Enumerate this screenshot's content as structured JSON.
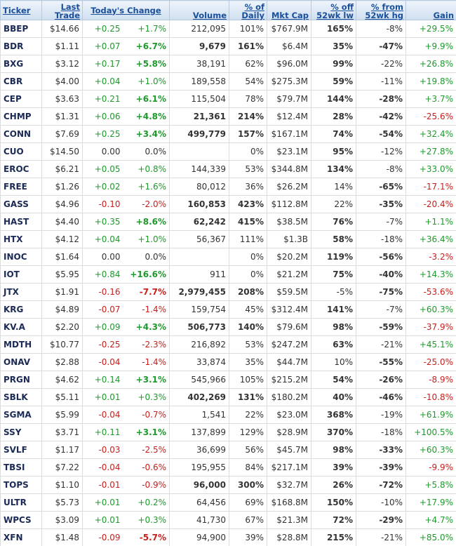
{
  "table": {
    "header": [
      "Ticker",
      "Last\nTrade",
      "Today's Change",
      "Volume",
      "% of\nDaily",
      "Mkt Cap",
      "% off\n52wk lw",
      "% from\n52wk hg",
      "Gain"
    ],
    "rows": [
      {
        "cells": [
          "BBEP",
          "$14.66",
          "+0.25",
          "+1.7%",
          "212,095",
          "101%",
          "$767.9M",
          "165%",
          "-8%",
          "+29.5%"
        ],
        "bold": [
          0,
          7
        ]
      },
      {
        "cells": [
          "BDR",
          "$1.11",
          "+0.07",
          "+6.7%",
          "9,679",
          "161%",
          "$6.4M",
          "35%",
          "-47%",
          "+9.9%"
        ],
        "bold": [
          0,
          3,
          4,
          5,
          7,
          8
        ]
      },
      {
        "cells": [
          "BXG",
          "$3.12",
          "+0.17",
          "+5.8%",
          "38,191",
          "62%",
          "$96.0M",
          "99%",
          "-22%",
          "+26.8%"
        ],
        "bold": [
          0,
          3,
          7
        ]
      },
      {
        "cells": [
          "CBR",
          "$4.00",
          "+0.04",
          "+1.0%",
          "189,558",
          "54%",
          "$275.3M",
          "59%",
          "-11%",
          "+19.8%"
        ],
        "bold": [
          0,
          7
        ]
      },
      {
        "cells": [
          "CEP",
          "$3.63",
          "+0.21",
          "+6.1%",
          "115,504",
          "78%",
          "$79.7M",
          "144%",
          "-28%",
          "+3.7%"
        ],
        "bold": [
          0,
          3,
          7,
          8
        ]
      },
      {
        "cells": [
          "CHMP",
          "$1.31",
          "+0.06",
          "+4.8%",
          "21,361",
          "214%",
          "$12.4M",
          "28%",
          "-42%",
          "-25.6%"
        ],
        "bold": [
          0,
          3,
          4,
          5,
          7,
          8
        ]
      },
      {
        "cells": [
          "CONN",
          "$7.69",
          "+0.25",
          "+3.4%",
          "499,779",
          "157%",
          "$167.1M",
          "74%",
          "-54%",
          "+32.4%"
        ],
        "bold": [
          0,
          3,
          4,
          5,
          7,
          8
        ]
      },
      {
        "cells": [
          "CUO",
          "$14.50",
          "0.00",
          "0.0%",
          null,
          "0%",
          "$23.1M",
          "95%",
          "-12%",
          "+27.8%"
        ],
        "bold": [
          0,
          7
        ]
      },
      {
        "cells": [
          "EROC",
          "$6.21",
          "+0.05",
          "+0.8%",
          "144,339",
          "53%",
          "$344.8M",
          "134%",
          "-8%",
          "+33.0%"
        ],
        "bold": [
          0,
          7
        ]
      },
      {
        "cells": [
          "FREE",
          "$1.26",
          "+0.02",
          "+1.6%",
          "80,012",
          "36%",
          "$26.2M",
          "14%",
          "-65%",
          "-17.1%"
        ],
        "bold": [
          0,
          8
        ]
      },
      {
        "cells": [
          "GASS",
          "$4.96",
          "-0.10",
          "-2.0%",
          "160,853",
          "423%",
          "$112.8M",
          "22%",
          "-35%",
          "-20.4%"
        ],
        "bold": [
          0,
          4,
          5,
          8
        ]
      },
      {
        "cells": [
          "HAST",
          "$4.40",
          "+0.35",
          "+8.6%",
          "62,242",
          "415%",
          "$38.5M",
          "76%",
          "-7%",
          "+1.1%"
        ],
        "bold": [
          0,
          3,
          4,
          5,
          7
        ]
      },
      {
        "cells": [
          "HTX",
          "$4.12",
          "+0.04",
          "+1.0%",
          "56,367",
          "111%",
          "$1.3B",
          "58%",
          "-18%",
          "+36.4%"
        ],
        "bold": [
          0,
          7
        ]
      },
      {
        "cells": [
          "INOC",
          "$1.64",
          "0.00",
          "0.0%",
          null,
          "0%",
          "$20.2M",
          "119%",
          "-56%",
          "-3.2%"
        ],
        "bold": [
          0,
          7,
          8
        ]
      },
      {
        "cells": [
          "IOT",
          "$5.95",
          "+0.84",
          "+16.6%",
          "911",
          "0%",
          "$21.2M",
          "75%",
          "-40%",
          "+14.3%"
        ],
        "bold": [
          0,
          3,
          7,
          8
        ]
      },
      {
        "cells": [
          "JTX",
          "$1.91",
          "-0.16",
          "-7.7%",
          "2,979,455",
          "208%",
          "$59.5M",
          "-5%",
          "-75%",
          "-53.6%"
        ],
        "bold": [
          0,
          3,
          4,
          5,
          8
        ]
      },
      {
        "cells": [
          "KRG",
          "$4.89",
          "-0.07",
          "-1.4%",
          "159,754",
          "45%",
          "$312.4M",
          "141%",
          "-7%",
          "+60.3%"
        ],
        "bold": [
          0,
          7
        ]
      },
      {
        "cells": [
          "KV.A",
          "$2.20",
          "+0.09",
          "+4.3%",
          "506,773",
          "140%",
          "$79.6M",
          "98%",
          "-59%",
          "-37.9%"
        ],
        "bold": [
          0,
          3,
          4,
          5,
          7,
          8
        ]
      },
      {
        "cells": [
          "MDTH",
          "$10.77",
          "-0.25",
          "-2.3%",
          "216,892",
          "53%",
          "$247.2M",
          "63%",
          "-21%",
          "+45.1%"
        ],
        "bold": [
          0,
          7
        ]
      },
      {
        "cells": [
          "ONAV",
          "$2.88",
          "-0.04",
          "-1.4%",
          "33,874",
          "35%",
          "$44.7M",
          "10%",
          "-55%",
          "-25.0%"
        ],
        "bold": [
          0,
          8
        ]
      },
      {
        "cells": [
          "PRGN",
          "$4.62",
          "+0.14",
          "+3.1%",
          "545,966",
          "105%",
          "$215.2M",
          "54%",
          "-26%",
          "-8.9%"
        ],
        "bold": [
          0,
          3,
          7,
          8
        ]
      },
      {
        "cells": [
          "SBLK",
          "$5.11",
          "+0.01",
          "+0.3%",
          "402,269",
          "131%",
          "$180.2M",
          "40%",
          "-46%",
          "-10.8%"
        ],
        "bold": [
          0,
          4,
          5,
          7,
          8
        ]
      },
      {
        "cells": [
          "SGMA",
          "$5.99",
          "-0.04",
          "-0.7%",
          "1,541",
          "22%",
          "$23.0M",
          "368%",
          "-19%",
          "+61.9%"
        ],
        "bold": [
          0,
          7
        ]
      },
      {
        "cells": [
          "SSY",
          "$3.71",
          "+0.11",
          "+3.1%",
          "137,899",
          "129%",
          "$28.9M",
          "370%",
          "-18%",
          "+100.5%"
        ],
        "bold": [
          0,
          3,
          7
        ]
      },
      {
        "cells": [
          "SVLF",
          "$1.17",
          "-0.03",
          "-2.5%",
          "36,699",
          "56%",
          "$45.7M",
          "98%",
          "-33%",
          "+60.3%"
        ],
        "bold": [
          0,
          7,
          8
        ]
      },
      {
        "cells": [
          "TBSI",
          "$7.22",
          "-0.04",
          "-0.6%",
          "195,955",
          "84%",
          "$217.1M",
          "39%",
          "-39%",
          "-9.9%"
        ],
        "bold": [
          0,
          7,
          8
        ]
      },
      {
        "cells": [
          "TOPS",
          "$1.10",
          "-0.01",
          "-0.9%",
          "96,000",
          "300%",
          "$32.7M",
          "26%",
          "-72%",
          "+5.8%"
        ],
        "bold": [
          0,
          4,
          5,
          7,
          8
        ]
      },
      {
        "cells": [
          "ULTR",
          "$5.73",
          "+0.01",
          "+0.2%",
          "64,456",
          "69%",
          "$168.8M",
          "150%",
          "-10%",
          "+17.9%"
        ],
        "bold": [
          0,
          7
        ]
      },
      {
        "cells": [
          "WPCS",
          "$3.09",
          "+0.01",
          "+0.3%",
          "41,730",
          "67%",
          "$21.3M",
          "72%",
          "-29%",
          "+4.7%"
        ],
        "bold": [
          0,
          7,
          8
        ]
      },
      {
        "cells": [
          "XFN",
          "$1.48",
          "-0.09",
          "-5.7%",
          "94,900",
          "39%",
          "$28.8M",
          "215%",
          "-21%",
          "+85.0%"
        ],
        "bold": [
          0,
          3,
          7
        ]
      }
    ]
  }
}
